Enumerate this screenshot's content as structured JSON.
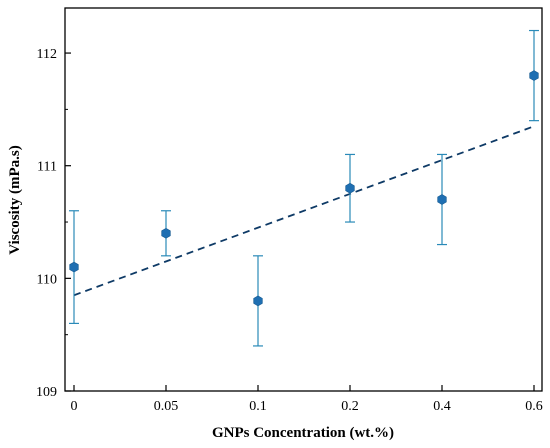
{
  "chart_data": {
    "type": "scatter",
    "title": "",
    "xlabel": "GNPs Concentration (wt.%)",
    "ylabel": "Viscosity (mPa.s)",
    "categories": [
      "0",
      "0.05",
      "0.1",
      "0.2",
      "0.4",
      "0.6"
    ],
    "ylim": [
      109,
      112.4
    ],
    "yticks": [
      "109",
      "110",
      "111",
      "112"
    ],
    "grid": false,
    "legend": "none",
    "series": [
      {
        "values": [
          110.1,
          110.4,
          109.8,
          110.8,
          110.7,
          111.8
        ],
        "error": [
          0.5,
          0.2,
          0.4,
          0.3,
          0.4,
          0.4
        ]
      }
    ],
    "trendline": {
      "start": 109.85,
      "end": 111.35,
      "style": "dashed"
    },
    "colors": {
      "marker": "#1f6fb2",
      "error_bar": "#2a8ab8",
      "trendline": "#0e3a66"
    }
  }
}
